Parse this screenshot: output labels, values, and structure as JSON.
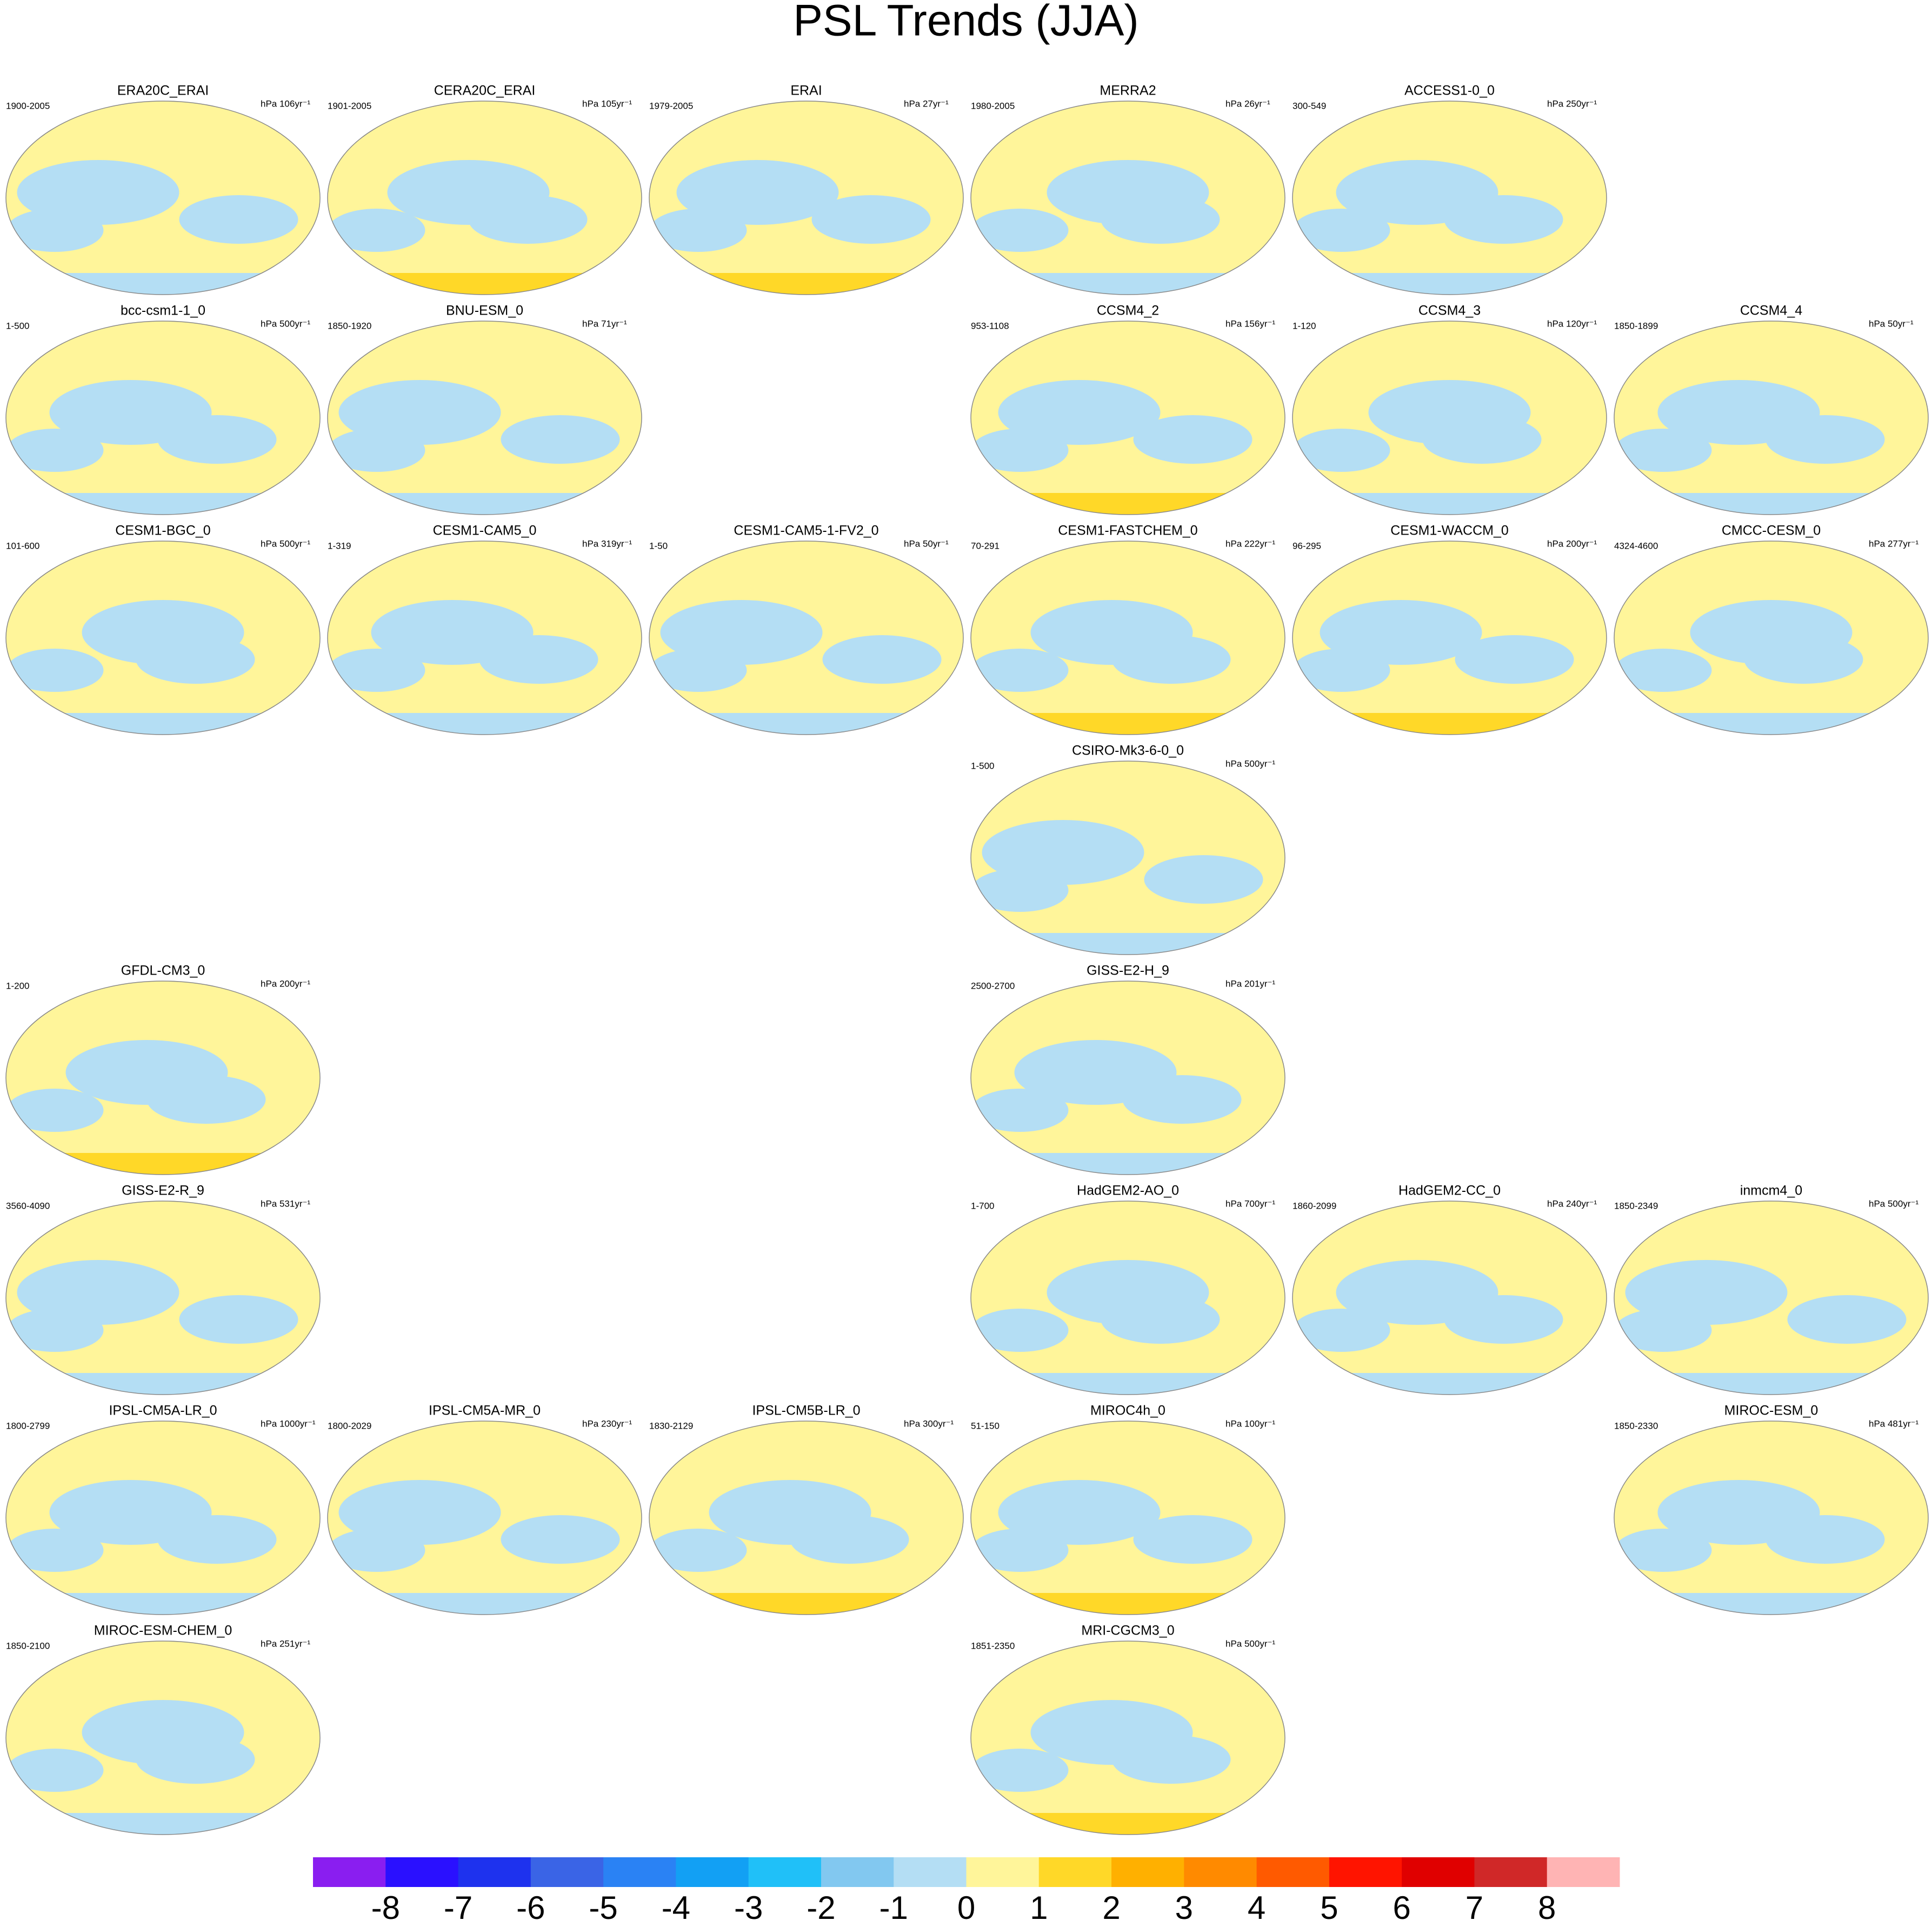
{
  "title": "PSL Trends (JJA)",
  "rows": [
    [
      {
        "name": "ERA20C_ERAI",
        "period": "1900-2005",
        "units": "hPa 106yr⁻¹"
      },
      {
        "name": "CERA20C_ERAI",
        "period": "1901-2005",
        "units": "hPa 105yr⁻¹"
      },
      {
        "name": "ERAI",
        "period": "1979-2005",
        "units": "hPa 27yr⁻¹"
      },
      {
        "name": "MERRA2",
        "period": "1980-2005",
        "units": "hPa 26yr⁻¹"
      },
      {
        "name": "ACCESS1-0_0",
        "period": "300-549",
        "units": "hPa 250yr⁻¹"
      },
      null
    ],
    [
      {
        "name": "bcc-csm1-1_0",
        "period": "1-500",
        "units": "hPa 500yr⁻¹"
      },
      {
        "name": "BNU-ESM_0",
        "period": "1850-1920",
        "units": "hPa 71yr⁻¹"
      },
      null,
      {
        "name": "CCSM4_2",
        "period": "953-1108",
        "units": "hPa 156yr⁻¹"
      },
      {
        "name": "CCSM4_3",
        "period": "1-120",
        "units": "hPa 120yr⁻¹"
      },
      {
        "name": "CCSM4_4",
        "period": "1850-1899",
        "units": "hPa 50yr⁻¹"
      }
    ],
    [
      {
        "name": "CESM1-BGC_0",
        "period": "101-600",
        "units": "hPa 500yr⁻¹"
      },
      {
        "name": "CESM1-CAM5_0",
        "period": "1-319",
        "units": "hPa 319yr⁻¹"
      },
      {
        "name": "CESM1-CAM5-1-FV2_0",
        "period": "1-50",
        "units": "hPa 50yr⁻¹"
      },
      {
        "name": "CESM1-FASTCHEM_0",
        "period": "70-291",
        "units": "hPa 222yr⁻¹"
      },
      {
        "name": "CESM1-WACCM_0",
        "period": "96-295",
        "units": "hPa 200yr⁻¹"
      },
      {
        "name": "CMCC-CESM_0",
        "period": "4324-4600",
        "units": "hPa 277yr⁻¹"
      }
    ],
    [
      null,
      null,
      null,
      {
        "name": "CSIRO-Mk3-6-0_0",
        "period": "1-500",
        "units": "hPa 500yr⁻¹"
      },
      null,
      null
    ],
    [
      {
        "name": "GFDL-CM3_0",
        "period": "1-200",
        "units": "hPa 200yr⁻¹"
      },
      null,
      null,
      {
        "name": "GISS-E2-H_9",
        "period": "2500-2700",
        "units": "hPa 201yr⁻¹"
      },
      null,
      null
    ],
    [
      {
        "name": "GISS-E2-R_9",
        "period": "3560-4090",
        "units": "hPa 531yr⁻¹"
      },
      null,
      null,
      {
        "name": "HadGEM2-AO_0",
        "period": "1-700",
        "units": "hPa 700yr⁻¹"
      },
      {
        "name": "HadGEM2-CC_0",
        "period": "1860-2099",
        "units": "hPa 240yr⁻¹"
      },
      {
        "name": "inmcm4_0",
        "period": "1850-2349",
        "units": "hPa 500yr⁻¹"
      }
    ],
    [
      {
        "name": "IPSL-CM5A-LR_0",
        "period": "1800-2799",
        "units": "hPa 1000yr⁻¹"
      },
      {
        "name": "IPSL-CM5A-MR_0",
        "period": "1800-2029",
        "units": "hPa 230yr⁻¹"
      },
      {
        "name": "IPSL-CM5B-LR_0",
        "period": "1830-2129",
        "units": "hPa 300yr⁻¹"
      },
      {
        "name": "MIROC4h_0",
        "period": "51-150",
        "units": "hPa 100yr⁻¹"
      },
      null,
      {
        "name": "MIROC-ESM_0",
        "period": "1850-2330",
        "units": "hPa 481yr⁻¹"
      }
    ],
    [
      {
        "name": "MIROC-ESM-CHEM_0",
        "period": "1850-2100",
        "units": "hPa 251yr⁻¹"
      },
      null,
      null,
      {
        "name": "MRI-CGCM3_0",
        "period": "1851-2350",
        "units": "hPa 500yr⁻¹"
      },
      null,
      null
    ]
  ],
  "colorbar": {
    "colors": [
      "#8a1ef0",
      "#2a10ff",
      "#1e32ee",
      "#3a64e6",
      "#2a82f4",
      "#12a0f4",
      "#20c0f8",
      "#82c8f0",
      "#b4def4",
      "#fff59a",
      "#ffd828",
      "#ffb000",
      "#ff8a00",
      "#ff5a00",
      "#ff1400",
      "#e00000",
      "#d02828",
      "#ffb4b4"
    ],
    "ticks": [
      -8,
      -7,
      -6,
      -5,
      -4,
      -3,
      -2,
      -1,
      0,
      1,
      2,
      3,
      4,
      5,
      6,
      7,
      8
    ]
  }
}
